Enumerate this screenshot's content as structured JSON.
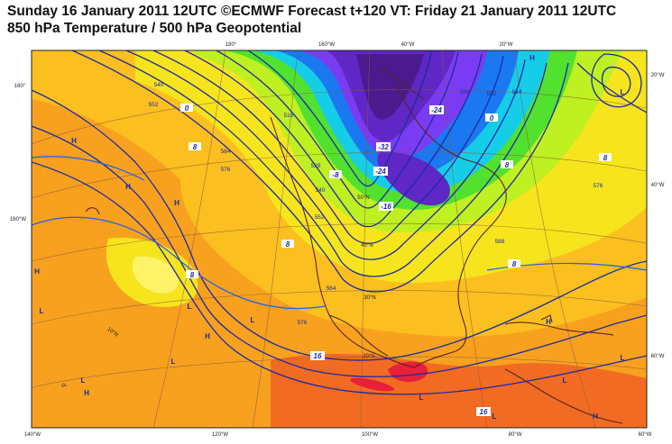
{
  "header": {
    "title_line1": "Sunday 16 January 2011 12UTC ©ECMWF Forecast t+120 VT: Friday 21 January 2011 12UTC",
    "title_line2": "850 hPa Temperature / 500 hPa Geopotential"
  },
  "colors": {
    "warm_orange": "#f7a11e",
    "light_orange": "#fbbf1f",
    "yellow": "#f6e51c",
    "light_yellow": "#fff36a",
    "red_orange": "#f26b22",
    "red": "#e8203a",
    "lime": "#bff021",
    "green": "#52e12e",
    "cyan": "#16cde8",
    "blue": "#1a79f1",
    "violet": "#7a3cf2",
    "purple": "#5f27c5",
    "dark_purple": "#4b1a8e",
    "contour_navy": "#1d2aa5",
    "coast_brown": "#5a2424"
  },
  "lon_labels_top": [
    "180°",
    "160°W",
    "40°W",
    "20°W"
  ],
  "lon_labels_bottom": [
    "140°W",
    "120°W",
    "100°W",
    "80°W",
    "60°W"
  ],
  "lat_labels_left": [
    "160°",
    "160°W"
  ],
  "lat_labels_right": [
    "20°W",
    "40°W",
    "60°W"
  ],
  "lat_labels_interior": [
    "50°N",
    "40°N",
    "30°N",
    "20°N",
    "10°N",
    "0°"
  ],
  "temp_labels": [
    "0",
    "8",
    "-8",
    "-32",
    "-24",
    "-24",
    "-16",
    "8",
    "8",
    "8",
    "8",
    "16",
    "16",
    "8",
    "0"
  ],
  "geopotential_labels": [
    "540",
    "552",
    "564",
    "576",
    "516",
    "528",
    "540",
    "552",
    "564",
    "576",
    "588",
    "552",
    "564",
    "576",
    "588"
  ],
  "pressure_centers": [
    "H",
    "H",
    "H",
    "H",
    "H",
    "H",
    "H",
    "H",
    "H",
    "L",
    "L",
    "L",
    "L",
    "L",
    "L",
    "L",
    "L",
    "L",
    "L"
  ]
}
